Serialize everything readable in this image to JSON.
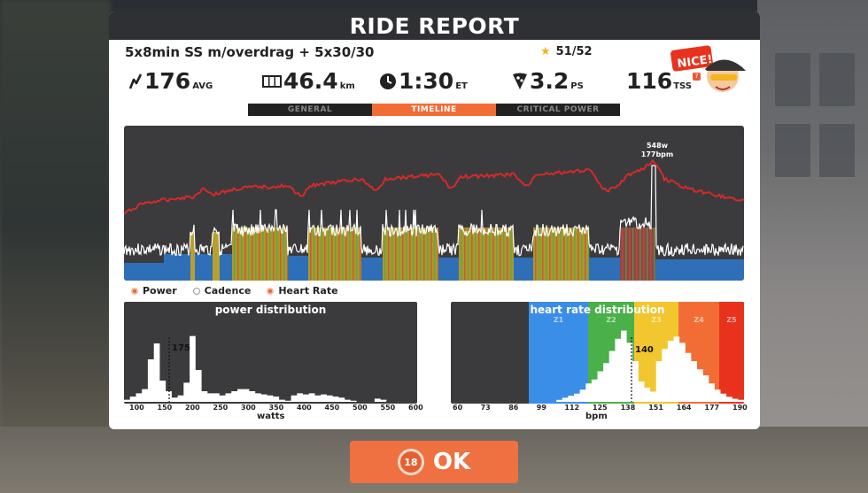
{
  "window": {
    "title": "RIDE REPORT"
  },
  "workout": {
    "name": "5x8min SS m/overdrag + 5x30/30",
    "rating": "51/52"
  },
  "stats": {
    "power": {
      "value": "176",
      "unit": "AVG"
    },
    "distance": {
      "value": "46.4",
      "unit": "km"
    },
    "time": {
      "value": "1:30",
      "unit": "ET"
    },
    "climb": {
      "value": "3.2",
      "unit": "PS"
    },
    "tss": {
      "value": "116",
      "unit": "TSS",
      "info": "?"
    }
  },
  "badge": {
    "text": "NICE!"
  },
  "tabs": [
    {
      "label": "GENERAL",
      "active": false
    },
    {
      "label": "TIMELINE",
      "active": true
    },
    {
      "label": "CRITICAL POWER",
      "active": false
    }
  ],
  "timeline": {
    "peak_label_power": "548w",
    "peak_label_hr": "177bpm"
  },
  "legend": [
    {
      "label": "Power",
      "color": "#e8643c"
    },
    {
      "label": "Cadence",
      "color": "#ffffff"
    },
    {
      "label": "Heart Rate",
      "color": "#e8643c"
    }
  ],
  "power_distribution": {
    "title": "power distribution",
    "marker": "175",
    "ticks": [
      "100",
      "150",
      "200",
      "250",
      "300",
      "350",
      "400",
      "450",
      "500",
      "550",
      "600"
    ],
    "xlabel": "watts"
  },
  "hr_distribution": {
    "title": "heart rate distribution",
    "marker": "140",
    "zones": [
      "Z1",
      "Z2",
      "Z3",
      "Z4",
      "Z5"
    ],
    "zone_colors": [
      "#3a8ee8",
      "#4ab04a",
      "#f2c62e",
      "#f26d36",
      "#e8321e"
    ],
    "ticks": [
      "60",
      "73",
      "86",
      "99",
      "112",
      "125",
      "138",
      "151",
      "164",
      "177",
      "190"
    ],
    "xlabel": "bpm"
  },
  "footer": {
    "ok_label": "OK",
    "countdown": "18"
  },
  "colors": {
    "accent": "#ef7040",
    "heart_rate_line": "#d42a2a",
    "power_zone_blue": "#2f6fb8"
  }
}
